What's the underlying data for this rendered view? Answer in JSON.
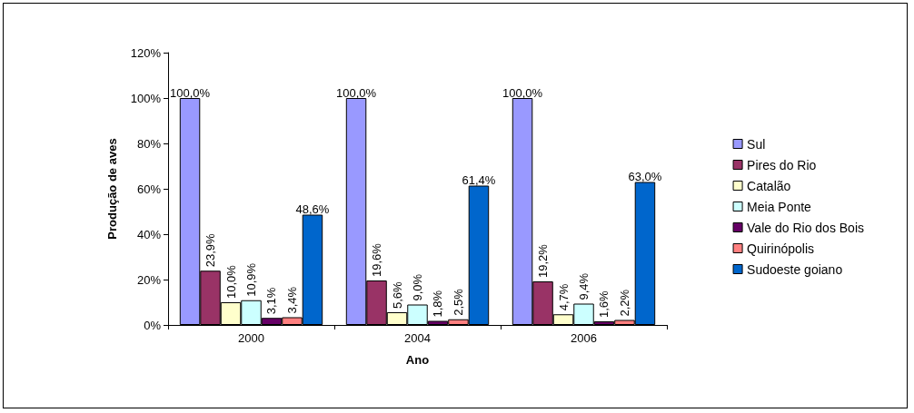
{
  "chart_data": {
    "type": "bar",
    "xlabel": "Ano",
    "ylabel": "Produção de aves",
    "categories": [
      "2000",
      "2004",
      "2006"
    ],
    "series": [
      {
        "name": "Sul",
        "color": "#9999ff",
        "values": [
          100,
          100,
          100
        ],
        "value_labels": [
          "100,0%",
          "100,0%",
          "100,0%"
        ]
      },
      {
        "name": "Pires do Rio",
        "color": "#993366",
        "values": [
          23.9,
          19.6,
          19.2
        ],
        "value_labels": [
          "23,9%",
          "19,6%",
          "19,2%"
        ]
      },
      {
        "name": "Catalão",
        "color": "#ffffcc",
        "values": [
          10.0,
          5.6,
          4.7
        ],
        "value_labels": [
          "10,0%",
          "5,6%",
          "4,7%"
        ]
      },
      {
        "name": "Meia Ponte",
        "color": "#ccffff",
        "values": [
          10.9,
          9.0,
          9.4
        ],
        "value_labels": [
          "10,9%",
          "9,0%",
          "9,4%"
        ]
      },
      {
        "name": "Vale do Rio dos Bois",
        "color": "#660066",
        "values": [
          3.1,
          1.8,
          1.6
        ],
        "value_labels": [
          "3,1%",
          "1,8%",
          "1,6%"
        ]
      },
      {
        "name": "Quirinópolis",
        "color": "#ff8080",
        "values": [
          3.4,
          2.5,
          2.2
        ],
        "value_labels": [
          "3,4%",
          "2,5%",
          "2,2%"
        ]
      },
      {
        "name": "Sudoeste goiano",
        "color": "#0066cc",
        "values": [
          48.6,
          61.4,
          63.0
        ],
        "value_labels": [
          "48,6%",
          "61,4%",
          "63,0%"
        ]
      }
    ],
    "ylim": [
      0,
      120
    ],
    "yticks": [
      {
        "value": 0,
        "label": "0%"
      },
      {
        "value": 20,
        "label": "20%"
      },
      {
        "value": 40,
        "label": "40%"
      },
      {
        "value": 60,
        "label": "60%"
      },
      {
        "value": 80,
        "label": "80%"
      },
      {
        "value": 100,
        "label": "100%"
      },
      {
        "value": 120,
        "label": "120%"
      }
    ],
    "grid": false,
    "legend": "right"
  }
}
